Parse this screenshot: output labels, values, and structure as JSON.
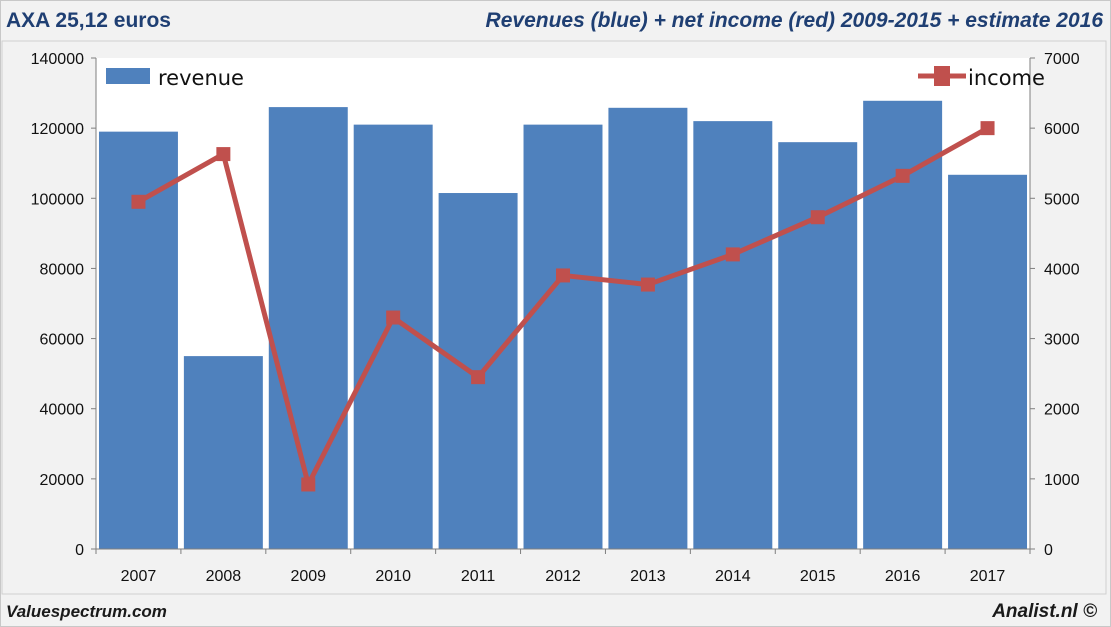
{
  "header": {
    "left_title": "AXA 25,12 euros",
    "right_title": "Revenues (blue) + net income (red) 2009-2015 + estimate 2016"
  },
  "footer": {
    "left": "Valuespectrum.com",
    "right": "Analist.nl ©"
  },
  "colors": {
    "bar": "#4f81bd",
    "line": "#c0504d",
    "plot_bg": "#ffffff",
    "page_bg": "#f2f2f2"
  },
  "chart_data": {
    "type": "bar",
    "categories": [
      "2007",
      "2008",
      "2009",
      "2010",
      "2011",
      "2012",
      "2013",
      "2014",
      "2015",
      "2016",
      "2017"
    ],
    "series": [
      {
        "name": "revenue",
        "type": "bar",
        "axis": "left",
        "values": [
          119000,
          55000,
          126000,
          121000,
          101500,
          121000,
          125800,
          122000,
          116000,
          127800,
          106700
        ]
      },
      {
        "name": "income",
        "type": "line",
        "axis": "right",
        "values": [
          4950,
          5630,
          920,
          3300,
          2450,
          3900,
          3770,
          4200,
          4730,
          5320,
          6000
        ]
      }
    ],
    "y_left": {
      "lim": [
        0,
        140000
      ],
      "ticks": [
        "0",
        "20000",
        "40000",
        "60000",
        "80000",
        "100000",
        "120000",
        "140000"
      ]
    },
    "y_right": {
      "lim": [
        0,
        7000
      ],
      "ticks": [
        "0",
        "1000",
        "2000",
        "3000",
        "4000",
        "5000",
        "6000",
        "7000"
      ]
    },
    "grid": false,
    "legend": [
      "top-left",
      "top-right"
    ]
  }
}
